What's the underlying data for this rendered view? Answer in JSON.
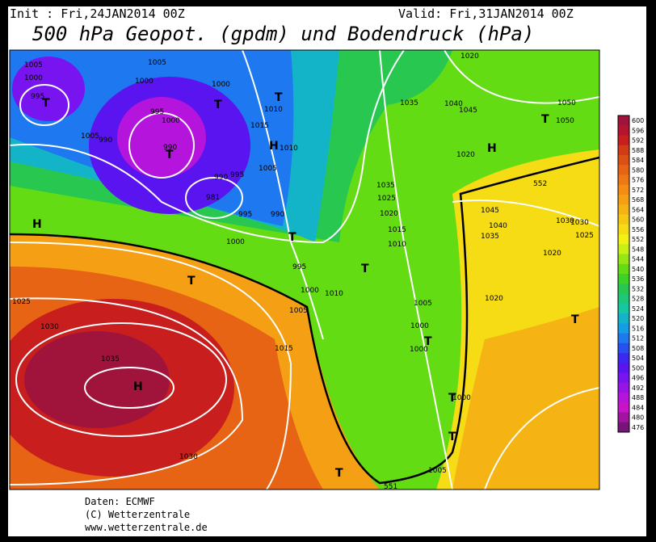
{
  "header": {
    "init": "Init : Fri,24JAN2014 00Z",
    "valid": "Valid: Fri,31JAN2014 00Z",
    "title": "500 hPa Geopot. (gpdm) und Bodendruck (hPa)"
  },
  "colorbar": {
    "levels": [
      600,
      596,
      592,
      588,
      584,
      580,
      576,
      572,
      568,
      564,
      560,
      556,
      552,
      548,
      544,
      540,
      536,
      532,
      528,
      524,
      520,
      516,
      512,
      508,
      504,
      500,
      496,
      492,
      488,
      484,
      480,
      476
    ],
    "colors": [
      "#a0143c",
      "#b4142d",
      "#c81e1e",
      "#d23c14",
      "#dc5014",
      "#e66414",
      "#f07814",
      "#f58c14",
      "#f5a014",
      "#f5b414",
      "#f5c814",
      "#f5dc14",
      "#f5f014",
      "#c8f014",
      "#96e614",
      "#64dc14",
      "#3cd228",
      "#28c850",
      "#1ec878",
      "#14c8a0",
      "#14b4c8",
      "#149ee6",
      "#1e78f0",
      "#2850f0",
      "#3c28f0",
      "#5a14f0",
      "#7814f0",
      "#9614e6",
      "#b414dc",
      "#c814c8",
      "#a014a0",
      "#781478"
    ]
  },
  "map_labels": [
    "1005",
    "1000",
    "995",
    "T",
    "1005",
    "1000",
    "990",
    "990",
    "T",
    "1005",
    "1000",
    "T",
    "1000",
    "995",
    "T",
    "1010",
    "1015",
    "H",
    "1010",
    "1005",
    "990",
    "995",
    "981",
    "995",
    "990",
    "T",
    "1000",
    "995",
    "1000",
    "T",
    "H",
    "1025",
    "1030",
    "1035",
    "H",
    "1005",
    "1010",
    "1015",
    "1030",
    "T",
    "T",
    "1000",
    "T",
    "T",
    "1020",
    "1025",
    "1035",
    "1035",
    "1040",
    "1045",
    "T",
    "1050",
    "1050",
    "H",
    "1020",
    "1030",
    "1025",
    "1020",
    "1015",
    "1010",
    "1045",
    "1040",
    "1035",
    "1030",
    "1020",
    "1020",
    "T",
    "1005",
    "1000",
    "T",
    "1000",
    "1005",
    "T",
    "552",
    "551"
  ],
  "footer": [
    "Daten: ECMWF",
    "(C) Wetterzentrale",
    "www.wetterzentrale.de"
  ]
}
